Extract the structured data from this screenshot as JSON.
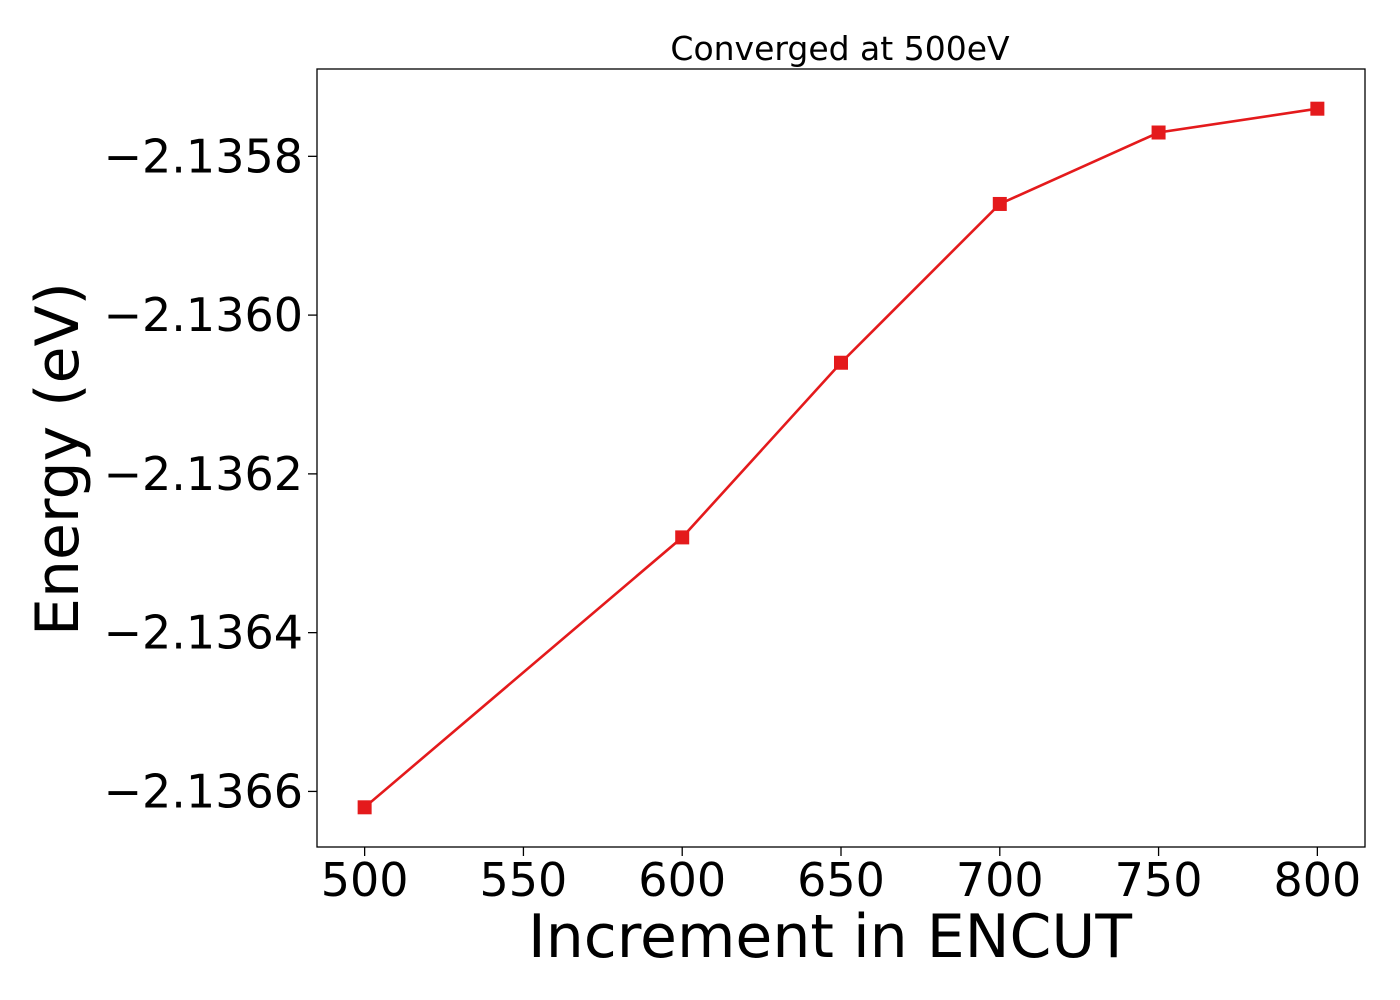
{
  "chart_data": {
    "type": "line",
    "title": "Converged at 500eV",
    "xlabel": "Increment in ENCUT",
    "ylabel": "Energy (eV)",
    "x": [
      500,
      600,
      650,
      700,
      750,
      800
    ],
    "series": [
      {
        "values": [
          -2.13662,
          -2.13628,
          -2.13606,
          -2.13586,
          -2.13577,
          -2.13574
        ],
        "color": "#e41a1c",
        "marker": "square"
      }
    ],
    "xlim": [
      485,
      815
    ],
    "ylim": [
      -2.13667,
      -2.13569
    ],
    "xticks": [
      500,
      550,
      600,
      650,
      700,
      750,
      800
    ],
    "xtick_labels": [
      "500",
      "550",
      "600",
      "650",
      "700",
      "750",
      "800"
    ],
    "yticks": [
      -2.1366,
      -2.1364,
      -2.1362,
      -2.136,
      -2.1358
    ],
    "ytick_labels": [
      "−2.1366",
      "−2.1364",
      "−2.1362",
      "−2.1360",
      "−2.1358"
    ],
    "grid": false,
    "legend": "none"
  }
}
